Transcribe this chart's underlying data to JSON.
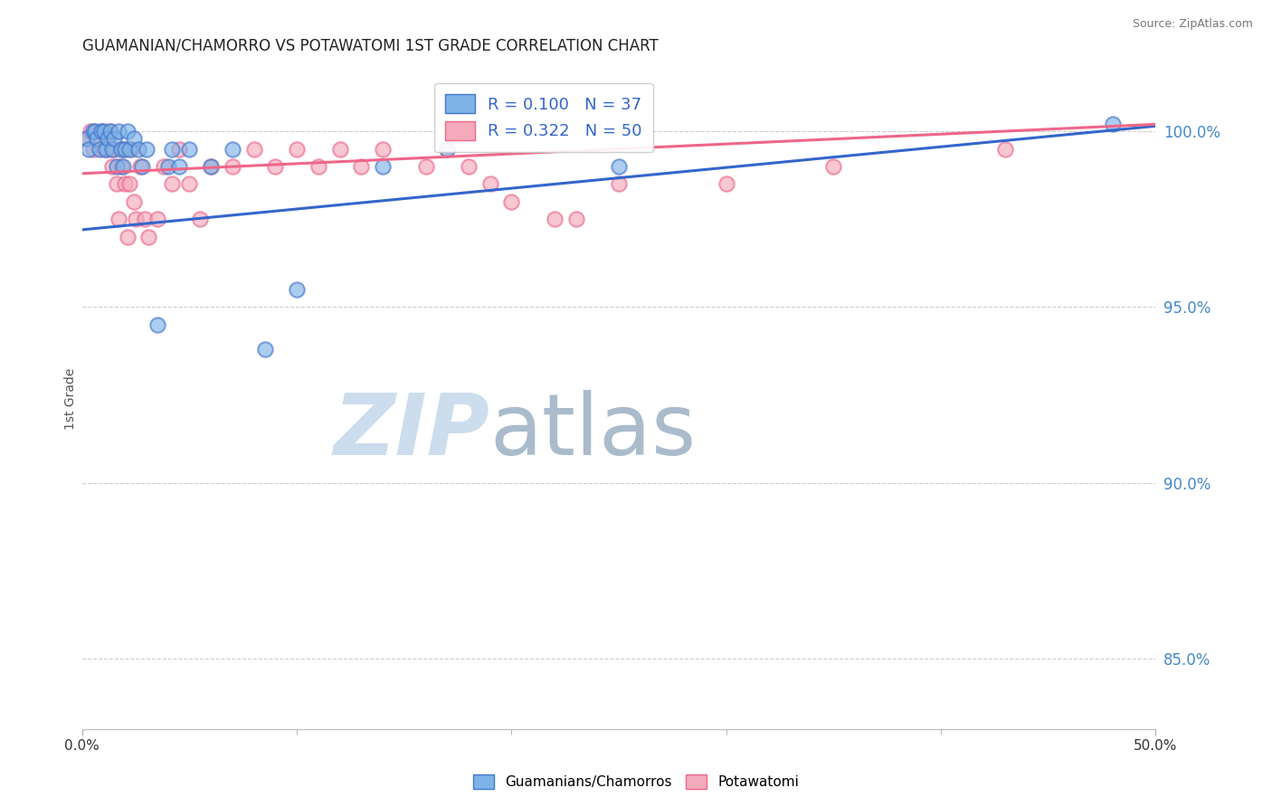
{
  "title": "GUAMANIAN/CHAMORRO VS POTAWATOMI 1ST GRADE CORRELATION CHART",
  "source": "Source: ZipAtlas.com",
  "ylabel": "1st Grade",
  "xmin": 0.0,
  "xmax": 50.0,
  "ymin": 83.0,
  "ymax": 101.8,
  "yticks_right": [
    85.0,
    90.0,
    95.0,
    100.0
  ],
  "ytick_labels_right": [
    "85.0%",
    "90.0%",
    "95.0%",
    "100.0%"
  ],
  "legend_blue_label": "Guamanians/Chamorros",
  "legend_pink_label": "Potawatomi",
  "R_blue": 0.1,
  "N_blue": 37,
  "R_pink": 0.322,
  "N_pink": 50,
  "blue_color": "#7EB3E8",
  "pink_color": "#F4AABB",
  "blue_edge_color": "#4477CC",
  "pink_edge_color": "#EE6688",
  "blue_line_color": "#3366CC",
  "pink_line_color": "#EE6688",
  "watermark_zip_color": "#CCDDED",
  "watermark_atlas_color": "#AABBCC",
  "background_color": "#FFFFFF",
  "grid_color": "#CCCCCC",
  "blue_scatter_x": [
    0.2,
    0.3,
    0.5,
    0.6,
    0.7,
    0.8,
    0.9,
    1.0,
    1.1,
    1.2,
    1.3,
    1.4,
    1.5,
    1.6,
    1.7,
    1.8,
    1.9,
    2.0,
    2.1,
    2.2,
    2.4,
    2.6,
    2.8,
    3.0,
    3.5,
    4.0,
    4.2,
    4.5,
    5.0,
    6.0,
    7.0,
    8.5,
    10.0,
    14.0,
    17.0,
    25.0,
    48.0
  ],
  "blue_scatter_y": [
    99.8,
    99.5,
    100.0,
    100.0,
    99.8,
    99.5,
    100.0,
    100.0,
    99.5,
    99.8,
    100.0,
    99.5,
    99.8,
    99.0,
    100.0,
    99.5,
    99.0,
    99.5,
    100.0,
    99.5,
    99.8,
    99.5,
    99.0,
    99.5,
    94.5,
    99.0,
    99.5,
    99.0,
    99.5,
    99.0,
    99.5,
    93.8,
    95.5,
    99.0,
    99.5,
    99.0,
    100.2
  ],
  "pink_scatter_x": [
    0.2,
    0.4,
    0.5,
    0.7,
    0.9,
    1.0,
    1.1,
    1.2,
    1.3,
    1.4,
    1.5,
    1.6,
    1.7,
    1.8,
    1.9,
    2.0,
    2.1,
    2.2,
    2.3,
    2.4,
    2.5,
    2.7,
    2.9,
    3.1,
    3.5,
    3.8,
    4.2,
    4.5,
    5.0,
    5.5,
    6.0,
    7.0,
    8.0,
    9.0,
    10.0,
    11.0,
    12.0,
    13.0,
    14.0,
    16.0,
    17.0,
    18.0,
    19.0,
    20.0,
    22.0,
    23.0,
    25.0,
    30.0,
    35.0,
    43.0
  ],
  "pink_scatter_y": [
    99.8,
    100.0,
    99.5,
    99.8,
    100.0,
    99.5,
    99.8,
    99.5,
    100.0,
    99.0,
    99.5,
    98.5,
    97.5,
    99.0,
    99.5,
    98.5,
    97.0,
    98.5,
    99.5,
    98.0,
    97.5,
    99.0,
    97.5,
    97.0,
    97.5,
    99.0,
    98.5,
    99.5,
    98.5,
    97.5,
    99.0,
    99.0,
    99.5,
    99.0,
    99.5,
    99.0,
    99.5,
    99.0,
    99.5,
    99.0,
    99.5,
    99.0,
    98.5,
    98.0,
    97.5,
    97.5,
    98.5,
    98.5,
    99.0,
    99.5
  ],
  "blue_trend_x": [
    0.0,
    50.0
  ],
  "blue_trend_y": [
    97.2,
    100.15
  ],
  "pink_trend_x": [
    0.0,
    50.0
  ],
  "pink_trend_y": [
    98.8,
    100.2
  ]
}
